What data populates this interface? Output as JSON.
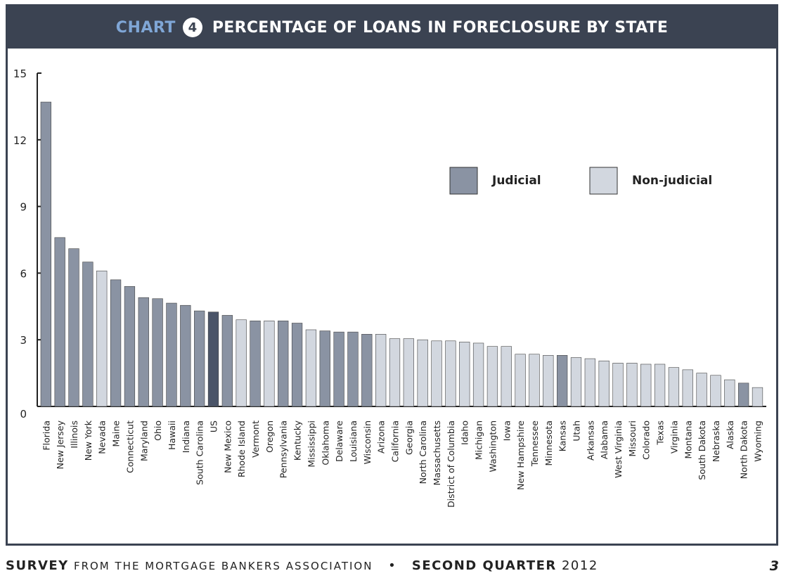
{
  "header": {
    "chart_word": "CHART",
    "chart_number": "4",
    "title": "PERCENTAGE OF LOANS IN FORECLOSURE BY STATE"
  },
  "footer": {
    "survey": "SURVEY",
    "from_text": "FROM THE MORTGAGE BANKERS ASSOCIATION",
    "bullet": "•",
    "quarter": "SECOND QUARTER",
    "year": "2012",
    "page": "3"
  },
  "colors": {
    "judicial": "#8a93a3",
    "non_judicial": "#d2d7df",
    "us": "#4a5468",
    "header_bg": "#3b4352",
    "chart_word": "#7fa6d6"
  },
  "chart_data": {
    "type": "bar",
    "title": "PERCENTAGE OF LOANS IN FORECLOSURE BY STATE",
    "xlabel": "",
    "ylabel": "",
    "ylim": [
      0,
      15
    ],
    "yticks": [
      0,
      3,
      6,
      9,
      12,
      15
    ],
    "grid": false,
    "legend_position": "top-right",
    "legend": [
      {
        "key": "judicial",
        "label": "Judicial"
      },
      {
        "key": "non_judicial",
        "label": "Non-judicial"
      }
    ],
    "categories": [
      "Florida",
      "New Jersey",
      "Illinois",
      "New York",
      "Nevada",
      "Maine",
      "Connecticut",
      "Maryland",
      "Ohio",
      "Hawaii",
      "Indiana",
      "South Carolina",
      "US",
      "New Mexico",
      "Rhode Island",
      "Vermont",
      "Oregon",
      "Pennsylvania",
      "Kentucky",
      "Mississippi",
      "Oklahoma",
      "Delaware",
      "Louisiana",
      "Wisconsin",
      "Arizona",
      "California",
      "Georgia",
      "North Carolina",
      "Massachusetts",
      "District of Columbia",
      "Idaho",
      "Michigan",
      "Washington",
      "Iowa",
      "New Hampshire",
      "Tennessee",
      "Minnesota",
      "Kansas",
      "Utah",
      "Arkansas",
      "Alabama",
      "West Virginia",
      "Missouri",
      "Colorado",
      "Texas",
      "Virginia",
      "Montana",
      "South Dakota",
      "Nebraska",
      "Alaska",
      "North Dakota",
      "Wyoming"
    ],
    "values": [
      13.7,
      7.6,
      7.1,
      6.5,
      6.1,
      5.7,
      5.4,
      4.9,
      4.85,
      4.65,
      4.55,
      4.3,
      4.25,
      4.1,
      3.9,
      3.85,
      3.85,
      3.85,
      3.75,
      3.45,
      3.4,
      3.35,
      3.35,
      3.25,
      3.25,
      3.05,
      3.05,
      3.0,
      2.95,
      2.95,
      2.9,
      2.85,
      2.7,
      2.7,
      2.35,
      2.35,
      2.3,
      2.3,
      2.2,
      2.15,
      2.05,
      1.95,
      1.95,
      1.9,
      1.9,
      1.75,
      1.65,
      1.5,
      1.4,
      1.2,
      1.05,
      0.85
    ],
    "foreclosure_type": [
      "judicial",
      "judicial",
      "judicial",
      "judicial",
      "non_judicial",
      "judicial",
      "judicial",
      "judicial",
      "judicial",
      "judicial",
      "judicial",
      "judicial",
      "us",
      "judicial",
      "non_judicial",
      "judicial",
      "non_judicial",
      "judicial",
      "judicial",
      "non_judicial",
      "judicial",
      "judicial",
      "judicial",
      "judicial",
      "non_judicial",
      "non_judicial",
      "non_judicial",
      "non_judicial",
      "non_judicial",
      "non_judicial",
      "non_judicial",
      "non_judicial",
      "non_judicial",
      "non_judicial",
      "non_judicial",
      "non_judicial",
      "non_judicial",
      "judicial",
      "non_judicial",
      "non_judicial",
      "non_judicial",
      "non_judicial",
      "non_judicial",
      "non_judicial",
      "non_judicial",
      "non_judicial",
      "non_judicial",
      "non_judicial",
      "non_judicial",
      "non_judicial",
      "judicial",
      "non_judicial"
    ]
  }
}
